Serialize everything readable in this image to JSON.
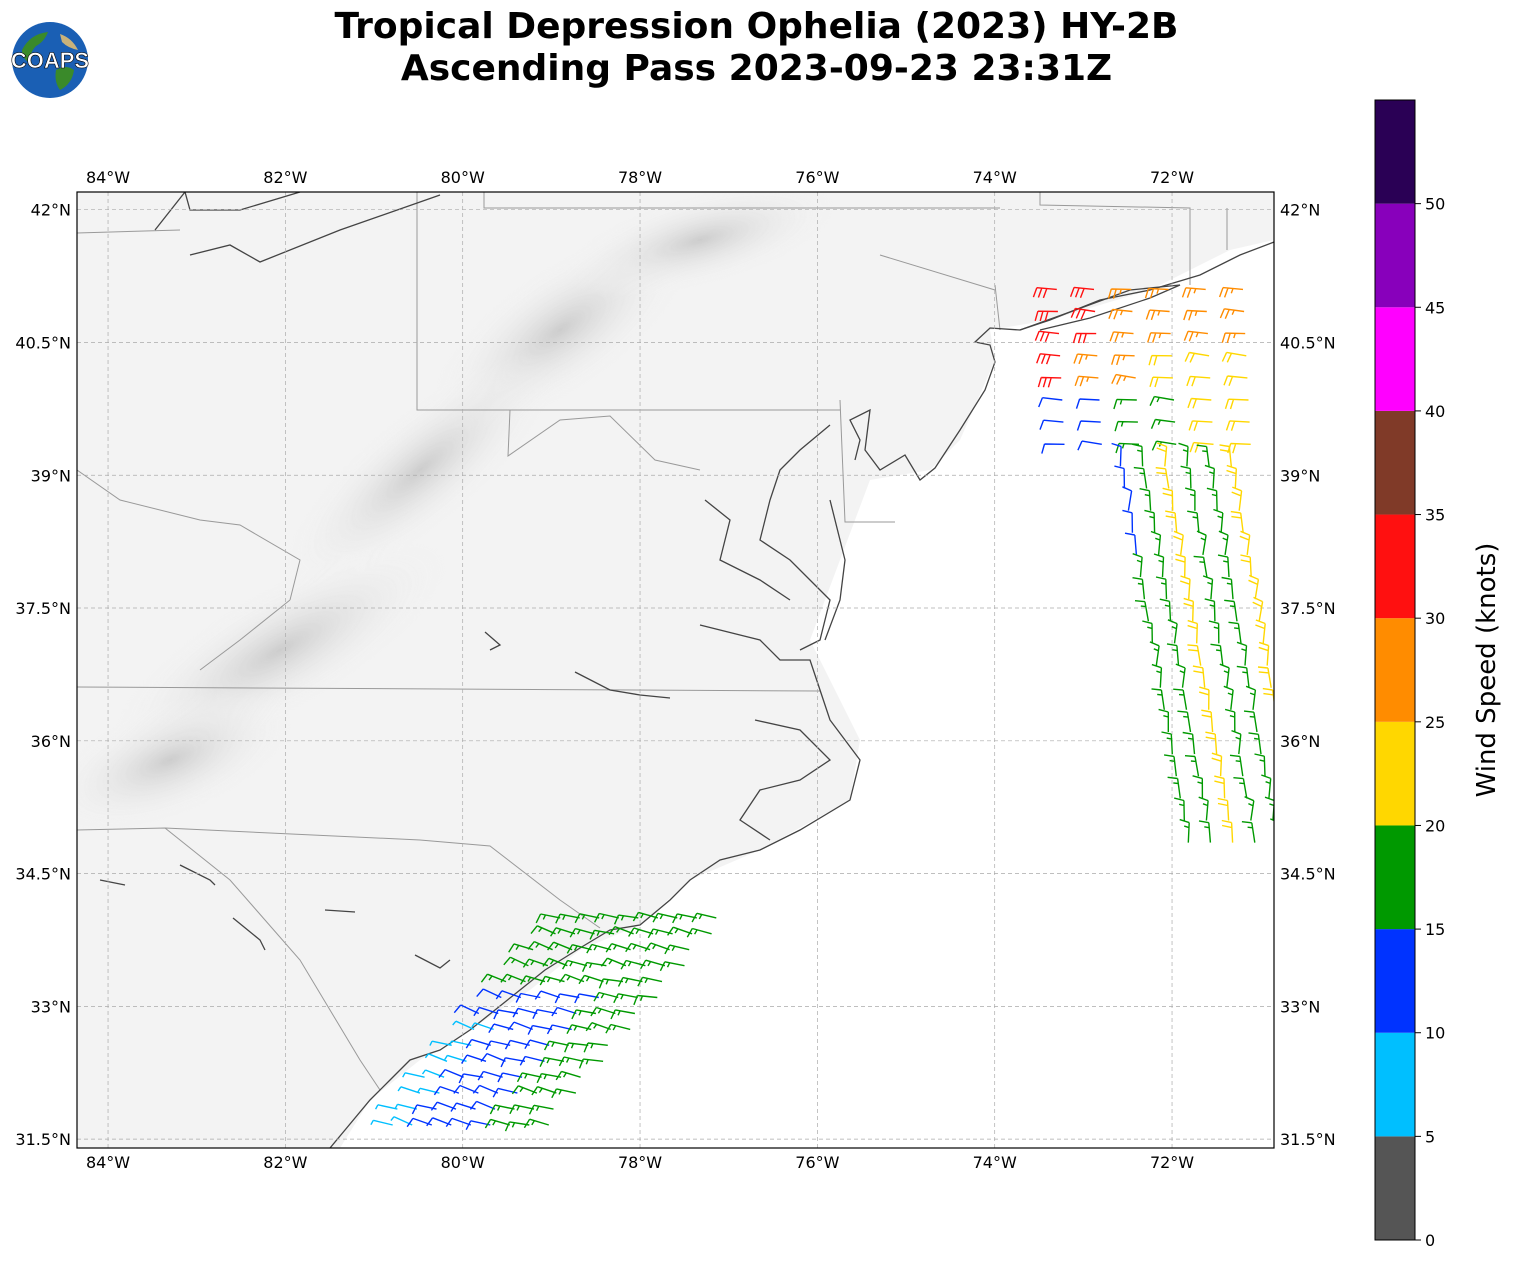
{
  "title": {
    "line1": "Tropical Depression Ophelia (2023) HY-2B",
    "line2": "Ascending Pass 2023-09-23 23:31Z"
  },
  "logo": {
    "text": "COAPS",
    "icon": "globe-icon"
  },
  "map": {
    "lon_range": [
      -84.35,
      -70.85
    ],
    "lat_range": [
      31.4,
      42.2
    ],
    "lon_ticks": [
      {
        "value": -84,
        "label": "84°W"
      },
      {
        "value": -82,
        "label": "82°W"
      },
      {
        "value": -80,
        "label": "80°W"
      },
      {
        "value": -78,
        "label": "78°W"
      },
      {
        "value": -76,
        "label": "76°W"
      },
      {
        "value": -74,
        "label": "74°W"
      },
      {
        "value": -72,
        "label": "72°W"
      }
    ],
    "lat_ticks": [
      {
        "value": 42,
        "label": "42°N"
      },
      {
        "value": 40.5,
        "label": "40.5°N"
      },
      {
        "value": 39,
        "label": "39°N"
      },
      {
        "value": 37.5,
        "label": "37.5°N"
      },
      {
        "value": 36,
        "label": "36°N"
      },
      {
        "value": 34.5,
        "label": "34.5°N"
      },
      {
        "value": 33,
        "label": "33°N"
      },
      {
        "value": 31.5,
        "label": "31.5°N"
      }
    ],
    "grid": true,
    "coast_color": "#444444",
    "border_color": "#999999"
  },
  "colorbar": {
    "label": "Wind Speed (knots)",
    "ticks": [
      "0",
      "5",
      "10",
      "15",
      "20",
      "25",
      "30",
      "35",
      "40",
      "45",
      "50"
    ],
    "bins": [
      {
        "min": 0,
        "max": 5,
        "color": "#555555"
      },
      {
        "min": 5,
        "max": 10,
        "color": "#00bfff"
      },
      {
        "min": 10,
        "max": 15,
        "color": "#0033ff"
      },
      {
        "min": 15,
        "max": 20,
        "color": "#009900"
      },
      {
        "min": 20,
        "max": 25,
        "color": "#ffd700"
      },
      {
        "min": 25,
        "max": 30,
        "color": "#ff8c00"
      },
      {
        "min": 30,
        "max": 35,
        "color": "#ff1010"
      },
      {
        "min": 35,
        "max": 40,
        "color": "#803a28"
      },
      {
        "min": 40,
        "max": 45,
        "color": "#ff00ff"
      },
      {
        "min": 45,
        "max": 50,
        "color": "#8800bb"
      },
      {
        "min": 50,
        "max": 55,
        "color": "#2a0055"
      }
    ]
  },
  "wind_swaths": [
    {
      "name": "north-swath",
      "lat_start": 39.1,
      "lat_end": 41.2,
      "lon_start": -73.1,
      "lon_end": -70.9,
      "speed": 27
    },
    {
      "name": "south-swath",
      "lat_start": 31.5,
      "lat_end": 34.0,
      "lon_start": -81.0,
      "lon_end": -77.1,
      "speed": 14
    }
  ]
}
